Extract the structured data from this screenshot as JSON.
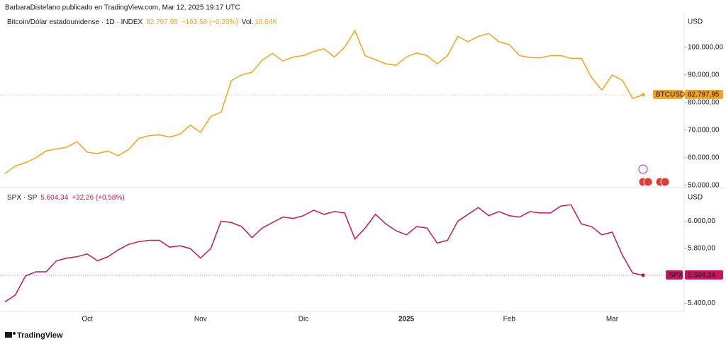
{
  "header": "BarbaraDistefano publicado en TradingView.com, Mar 12, 2025 19:17 UTC",
  "footer": "TradingView",
  "chart_data": [
    {
      "type": "line",
      "currency": "USD",
      "symbol": "BTCUSD",
      "legend": "Bitcoin/Dólar estadounidense · 1D · INDEX",
      "change": "−163,68 (−0,20%)",
      "volume_label": "Vol.",
      "volume": "16,64K",
      "ylim": [
        49200,
        112000
      ],
      "yticks": [
        {
          "value": 50000,
          "label": "50.000,00"
        },
        {
          "value": 60000,
          "label": "60.000,00"
        },
        {
          "value": 70000,
          "label": "70.000,00"
        },
        {
          "value": 80000,
          "label": "80.000,00"
        },
        {
          "value": 90000,
          "label": "90.000,00"
        },
        {
          "value": 100000,
          "label": "100.000,00"
        }
      ],
      "series": [
        {
          "name": "Bitcoin/Dólar estadounidense",
          "color": "#f7a21b",
          "values": [
            54300,
            57000,
            58200,
            60000,
            62500,
            63200,
            63800,
            65800,
            62000,
            61500,
            62500,
            60700,
            63000,
            67000,
            68000,
            68300,
            67500,
            68500,
            71800,
            69200,
            75000,
            76500,
            88000,
            90000,
            91000,
            95400,
            97800,
            95000,
            96500,
            97000,
            98500,
            99500,
            96500,
            100000,
            106000,
            97000,
            95500,
            94000,
            93500,
            96500,
            98000,
            97000,
            94000,
            97000,
            104000,
            102000,
            104000,
            105000,
            102000,
            101000,
            97000,
            96300,
            96200,
            97000,
            97000,
            96000,
            96000,
            89000,
            84500,
            90000,
            88000,
            81500,
            82797.95
          ],
          "value_labels": [
            null,
            null,
            null,
            null,
            null,
            null,
            null,
            null,
            null,
            null,
            null,
            null,
            null,
            null,
            null,
            null,
            null,
            null,
            null,
            null,
            null,
            null,
            null,
            null,
            null,
            null,
            null,
            null,
            null,
            null,
            null,
            null,
            null,
            null,
            null,
            null,
            null,
            null,
            null,
            null,
            null,
            null,
            null,
            null,
            null,
            null,
            null,
            null,
            null,
            null,
            null,
            null,
            null,
            null,
            null,
            null,
            null,
            null,
            null,
            null,
            null,
            null,
            "82.797,95"
          ]
        }
      ]
    },
    {
      "type": "line",
      "currency": "USD",
      "symbol": "SPX",
      "legend": "SPX · SP",
      "change": "+32,26 (+0,58%)",
      "ylim": [
        5340,
        6230
      ],
      "yticks": [
        {
          "value": 5400,
          "label": "5.400,00"
        },
        {
          "value": 5800,
          "label": "5.800,00"
        },
        {
          "value": 6000,
          "label": "6.000,00"
        }
      ],
      "categories": [
        null,
        null,
        null,
        null,
        null,
        null,
        null,
        null,
        "Oct",
        null,
        null,
        null,
        null,
        null,
        null,
        null,
        null,
        null,
        null,
        "Nov",
        null,
        null,
        null,
        null,
        null,
        null,
        null,
        null,
        null,
        "Dic",
        null,
        null,
        null,
        null,
        null,
        null,
        null,
        null,
        null,
        "2025",
        null,
        null,
        null,
        null,
        null,
        null,
        null,
        null,
        null,
        "Feb",
        null,
        null,
        null,
        null,
        null,
        null,
        null,
        null,
        null,
        "Mar",
        null,
        null,
        null
      ],
      "series": [
        {
          "name": "SPX",
          "color": "#c2185b",
          "values": [
            5410,
            5460,
            5600,
            5630,
            5630,
            5710,
            5730,
            5740,
            5760,
            5710,
            5740,
            5790,
            5830,
            5850,
            5860,
            5860,
            5810,
            5820,
            5800,
            5730,
            5800,
            6000,
            5990,
            5960,
            5880,
            5950,
            5990,
            6030,
            6020,
            6040,
            6080,
            6050,
            6070,
            6060,
            5870,
            5950,
            6050,
            5980,
            5930,
            5900,
            5960,
            5950,
            5840,
            5860,
            6000,
            6050,
            6100,
            6040,
            6070,
            6040,
            6030,
            6070,
            6060,
            6060,
            6110,
            6120,
            5980,
            5960,
            5900,
            5920,
            5750,
            5620,
            5604.34
          ],
          "value_labels": [
            null,
            null,
            null,
            null,
            null,
            null,
            null,
            null,
            null,
            null,
            null,
            null,
            null,
            null,
            null,
            null,
            null,
            null,
            null,
            null,
            null,
            null,
            null,
            null,
            null,
            null,
            null,
            null,
            null,
            null,
            null,
            null,
            null,
            null,
            null,
            null,
            null,
            null,
            null,
            null,
            null,
            null,
            null,
            null,
            null,
            null,
            null,
            null,
            null,
            null,
            null,
            null,
            null,
            null,
            null,
            null,
            null,
            null,
            null,
            null,
            null,
            null,
            "5.604,34"
          ]
        }
      ]
    }
  ]
}
